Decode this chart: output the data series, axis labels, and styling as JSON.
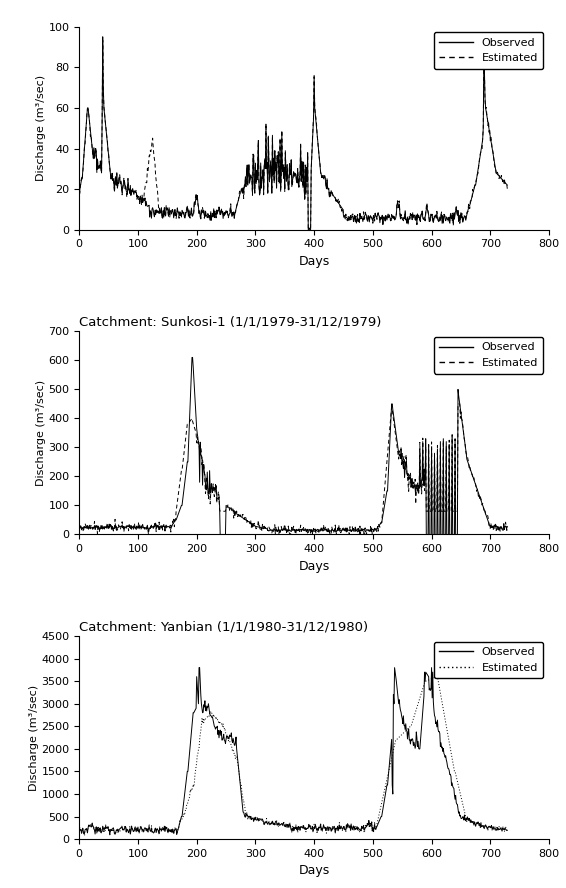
{
  "plots": [
    {
      "title": "",
      "ylabel": "Discharge (m³/sec)",
      "xlabel": "Days",
      "xlim": [
        0,
        800
      ],
      "ylim": [
        0,
        100
      ],
      "yticks": [
        0,
        20,
        40,
        60,
        80,
        100
      ],
      "xticks": [
        0,
        100,
        200,
        300,
        400,
        500,
        600,
        700,
        800
      ]
    },
    {
      "title": "Catchment: Sunkosi-1 (1/1/1979-31/12/1979)",
      "ylabel": "Discharge (m³/sec)",
      "xlabel": "Days",
      "xlim": [
        0,
        800
      ],
      "ylim": [
        0,
        700
      ],
      "yticks": [
        0,
        100,
        200,
        300,
        400,
        500,
        600,
        700
      ],
      "xticks": [
        0,
        100,
        200,
        300,
        400,
        500,
        600,
        700,
        800
      ]
    },
    {
      "title": "Catchment: Yanbian (1/1/1980-31/12/1980)",
      "ylabel": "Discharge (m³/sec)",
      "xlabel": "Days",
      "xlim": [
        0,
        800
      ],
      "ylim": [
        0,
        4500
      ],
      "yticks": [
        0,
        500,
        1000,
        1500,
        2000,
        2500,
        3000,
        3500,
        4000,
        4500
      ],
      "xticks": [
        0,
        100,
        200,
        300,
        400,
        500,
        600,
        700,
        800
      ]
    }
  ],
  "obs_color": "#000000",
  "est_color": "#000000",
  "obs_lw": 0.7,
  "est_lw": 0.7,
  "legend_entries": [
    "Observed",
    "Estimated"
  ],
  "figsize": [
    5.66,
    8.88
  ],
  "dpi": 100
}
